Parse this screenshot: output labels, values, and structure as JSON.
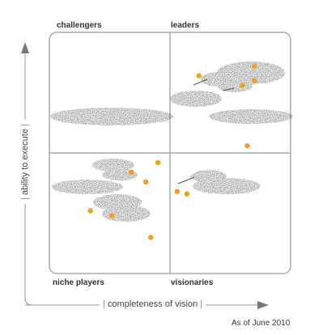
{
  "chart_data": {
    "type": "scatter",
    "title": "",
    "xlabel": "completeness of vision",
    "ylabel": "ability to execute",
    "xlim": [
      0,
      100
    ],
    "ylim": [
      0,
      100
    ],
    "grid": false,
    "quadrants": {
      "top_left": "challengers",
      "top_right": "leaders",
      "bottom_left": "niche players",
      "bottom_right": "visionaries"
    },
    "footnote": "As of June 2010",
    "points": [
      {
        "x": 62,
        "y": 82
      },
      {
        "x": 85,
        "y": 86
      },
      {
        "x": 80,
        "y": 78
      },
      {
        "x": 85,
        "y": 80
      },
      {
        "x": 82,
        "y": 53
      },
      {
        "x": 45,
        "y": 46
      },
      {
        "x": 34,
        "y": 42
      },
      {
        "x": 40,
        "y": 38
      },
      {
        "x": 26,
        "y": 24
      },
      {
        "x": 17,
        "y": 26
      },
      {
        "x": 42,
        "y": 15
      },
      {
        "x": 53,
        "y": 34
      },
      {
        "x": 57,
        "y": 33
      }
    ]
  }
}
